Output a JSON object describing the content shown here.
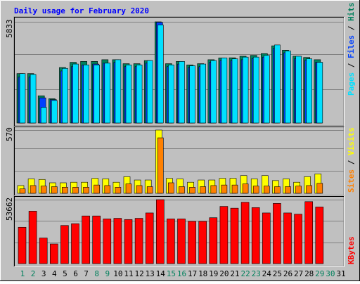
{
  "title": "Daily usage for February 2020",
  "colors": {
    "background": "#c0c0c0",
    "title": "#0000ff",
    "hits": "#00805c",
    "files": "#0040ff",
    "pages": "#00e0ff",
    "visits": "#ffff00",
    "sites": "#ff8000",
    "kbytes": "#ff0000",
    "weekend_day": "#00805c",
    "weekday": "#000000"
  },
  "chart_data": [
    {
      "type": "bar",
      "name": "hits-files-pages",
      "axis_max_label": "5833",
      "ymax": 5833,
      "legend": [
        "Pages",
        "Files",
        "Hits"
      ],
      "categories": [
        "1",
        "2",
        "3",
        "4",
        "5",
        "6",
        "7",
        "8",
        "9",
        "10",
        "11",
        "12",
        "13",
        "14",
        "15",
        "16",
        "17",
        "18",
        "19",
        "20",
        "21",
        "22",
        "23",
        "24",
        "25",
        "26",
        "27",
        "28",
        "29",
        "30",
        "31"
      ],
      "series": [
        {
          "name": "Hits",
          "values": [
            2850,
            2850,
            1570,
            1400,
            3200,
            3500,
            3550,
            3550,
            3650,
            3650,
            3420,
            3420,
            3600,
            5833,
            3420,
            3550,
            3350,
            3420,
            3650,
            3750,
            3760,
            3850,
            3900,
            4000,
            4450,
            4200,
            3850,
            3780,
            3650,
            0,
            0
          ]
        },
        {
          "name": "Files",
          "values": [
            2650,
            2650,
            1450,
            1350,
            3000,
            3250,
            3350,
            3400,
            3450,
            3500,
            3250,
            3250,
            3450,
            5800,
            3250,
            3400,
            3200,
            3250,
            3500,
            3600,
            3600,
            3650,
            3720,
            3800,
            4300,
            4050,
            3700,
            3620,
            3500,
            0,
            0
          ]
        },
        {
          "name": "Pages",
          "values": [
            2850,
            2800,
            900,
            1300,
            3150,
            3400,
            3350,
            3350,
            3450,
            3650,
            3350,
            3350,
            3600,
            5650,
            3350,
            3550,
            3300,
            3400,
            3600,
            3750,
            3700,
            3800,
            3800,
            3900,
            4500,
            4150,
            3850,
            3700,
            3500,
            0,
            0
          ]
        }
      ]
    },
    {
      "type": "bar",
      "name": "visits-sites",
      "axis_max_label": "570",
      "ymax": 570,
      "legend": [
        "Sites",
        "Visits"
      ],
      "categories": [
        "1",
        "2",
        "3",
        "4",
        "5",
        "6",
        "7",
        "8",
        "9",
        "10",
        "11",
        "12",
        "13",
        "14",
        "15",
        "16",
        "17",
        "18",
        "19",
        "20",
        "21",
        "22",
        "23",
        "24",
        "25",
        "26",
        "27",
        "28",
        "29",
        "30",
        "31"
      ],
      "series": [
        {
          "name": "Visits",
          "values": [
            70,
            130,
            125,
            95,
            95,
            100,
            100,
            135,
            130,
            100,
            150,
            120,
            120,
            570,
            135,
            130,
            100,
            120,
            120,
            135,
            135,
            160,
            130,
            160,
            115,
            130,
            100,
            150,
            175,
            0,
            0
          ]
        },
        {
          "name": "Sites",
          "values": [
            40,
            70,
            65,
            60,
            55,
            55,
            55,
            75,
            70,
            55,
            85,
            70,
            60,
            500,
            95,
            60,
            55,
            60,
            70,
            75,
            75,
            85,
            65,
            65,
            60,
            60,
            65,
            70,
            90,
            0,
            0
          ]
        }
      ]
    },
    {
      "type": "bar",
      "name": "kbytes",
      "axis_max_label": "53662",
      "ymax": 53662,
      "legend": [
        "KBytes"
      ],
      "categories": [
        "1",
        "2",
        "3",
        "4",
        "5",
        "6",
        "7",
        "8",
        "9",
        "10",
        "11",
        "12",
        "13",
        "14",
        "15",
        "16",
        "17",
        "18",
        "19",
        "20",
        "21",
        "22",
        "23",
        "24",
        "25",
        "26",
        "27",
        "28",
        "29",
        "30",
        "31"
      ],
      "series": [
        {
          "name": "KBytes",
          "values": [
            30500,
            44000,
            21500,
            16500,
            32000,
            33500,
            40000,
            40000,
            37500,
            38000,
            37000,
            38000,
            42500,
            53662,
            37500,
            37500,
            35500,
            35500,
            38500,
            48000,
            46500,
            51500,
            47000,
            42500,
            50500,
            42500,
            41500,
            52000,
            47500,
            0,
            0
          ]
        }
      ]
    }
  ]
}
